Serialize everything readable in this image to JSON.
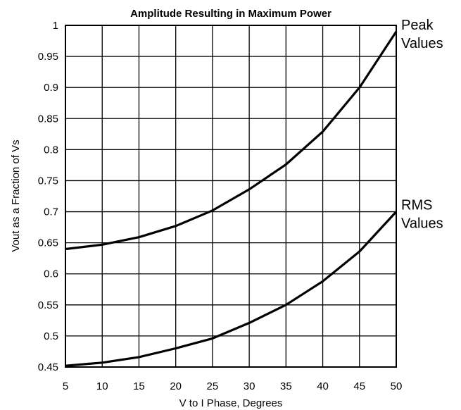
{
  "chart_data": {
    "type": "line",
    "title": "Amplitude Resulting in Maximum Power",
    "xlabel": "V to I Phase, Degrees",
    "ylabel": "Vout as a Fraction of Vs",
    "xlim": [
      5,
      50
    ],
    "ylim": [
      0.45,
      1
    ],
    "x_ticks": [
      "5",
      "10",
      "15",
      "20",
      "25",
      "30",
      "35",
      "40",
      "45",
      "50"
    ],
    "y_ticks": [
      "0.45",
      "0.5",
      "0.55",
      "0.6",
      "0.65",
      "0.7",
      "0.75",
      "0.8",
      "0.85",
      "0.9",
      "0.95",
      "1"
    ],
    "grid": true,
    "x": [
      5,
      10,
      15,
      20,
      25,
      30,
      35,
      40,
      45,
      50
    ],
    "series": [
      {
        "label_lines": [
          "Peak",
          "Values"
        ],
        "values": [
          0.64,
          0.647,
          0.659,
          0.677,
          0.702,
          0.736,
          0.776,
          0.829,
          0.9,
          0.99
        ]
      },
      {
        "label_lines": [
          "RMS",
          "Values"
        ],
        "values": [
          0.452,
          0.457,
          0.466,
          0.48,
          0.496,
          0.521,
          0.55,
          0.588,
          0.636,
          0.7
        ]
      }
    ],
    "colors": {
      "line": "#000000",
      "grid": "#000000",
      "background": "#ffffff"
    }
  }
}
